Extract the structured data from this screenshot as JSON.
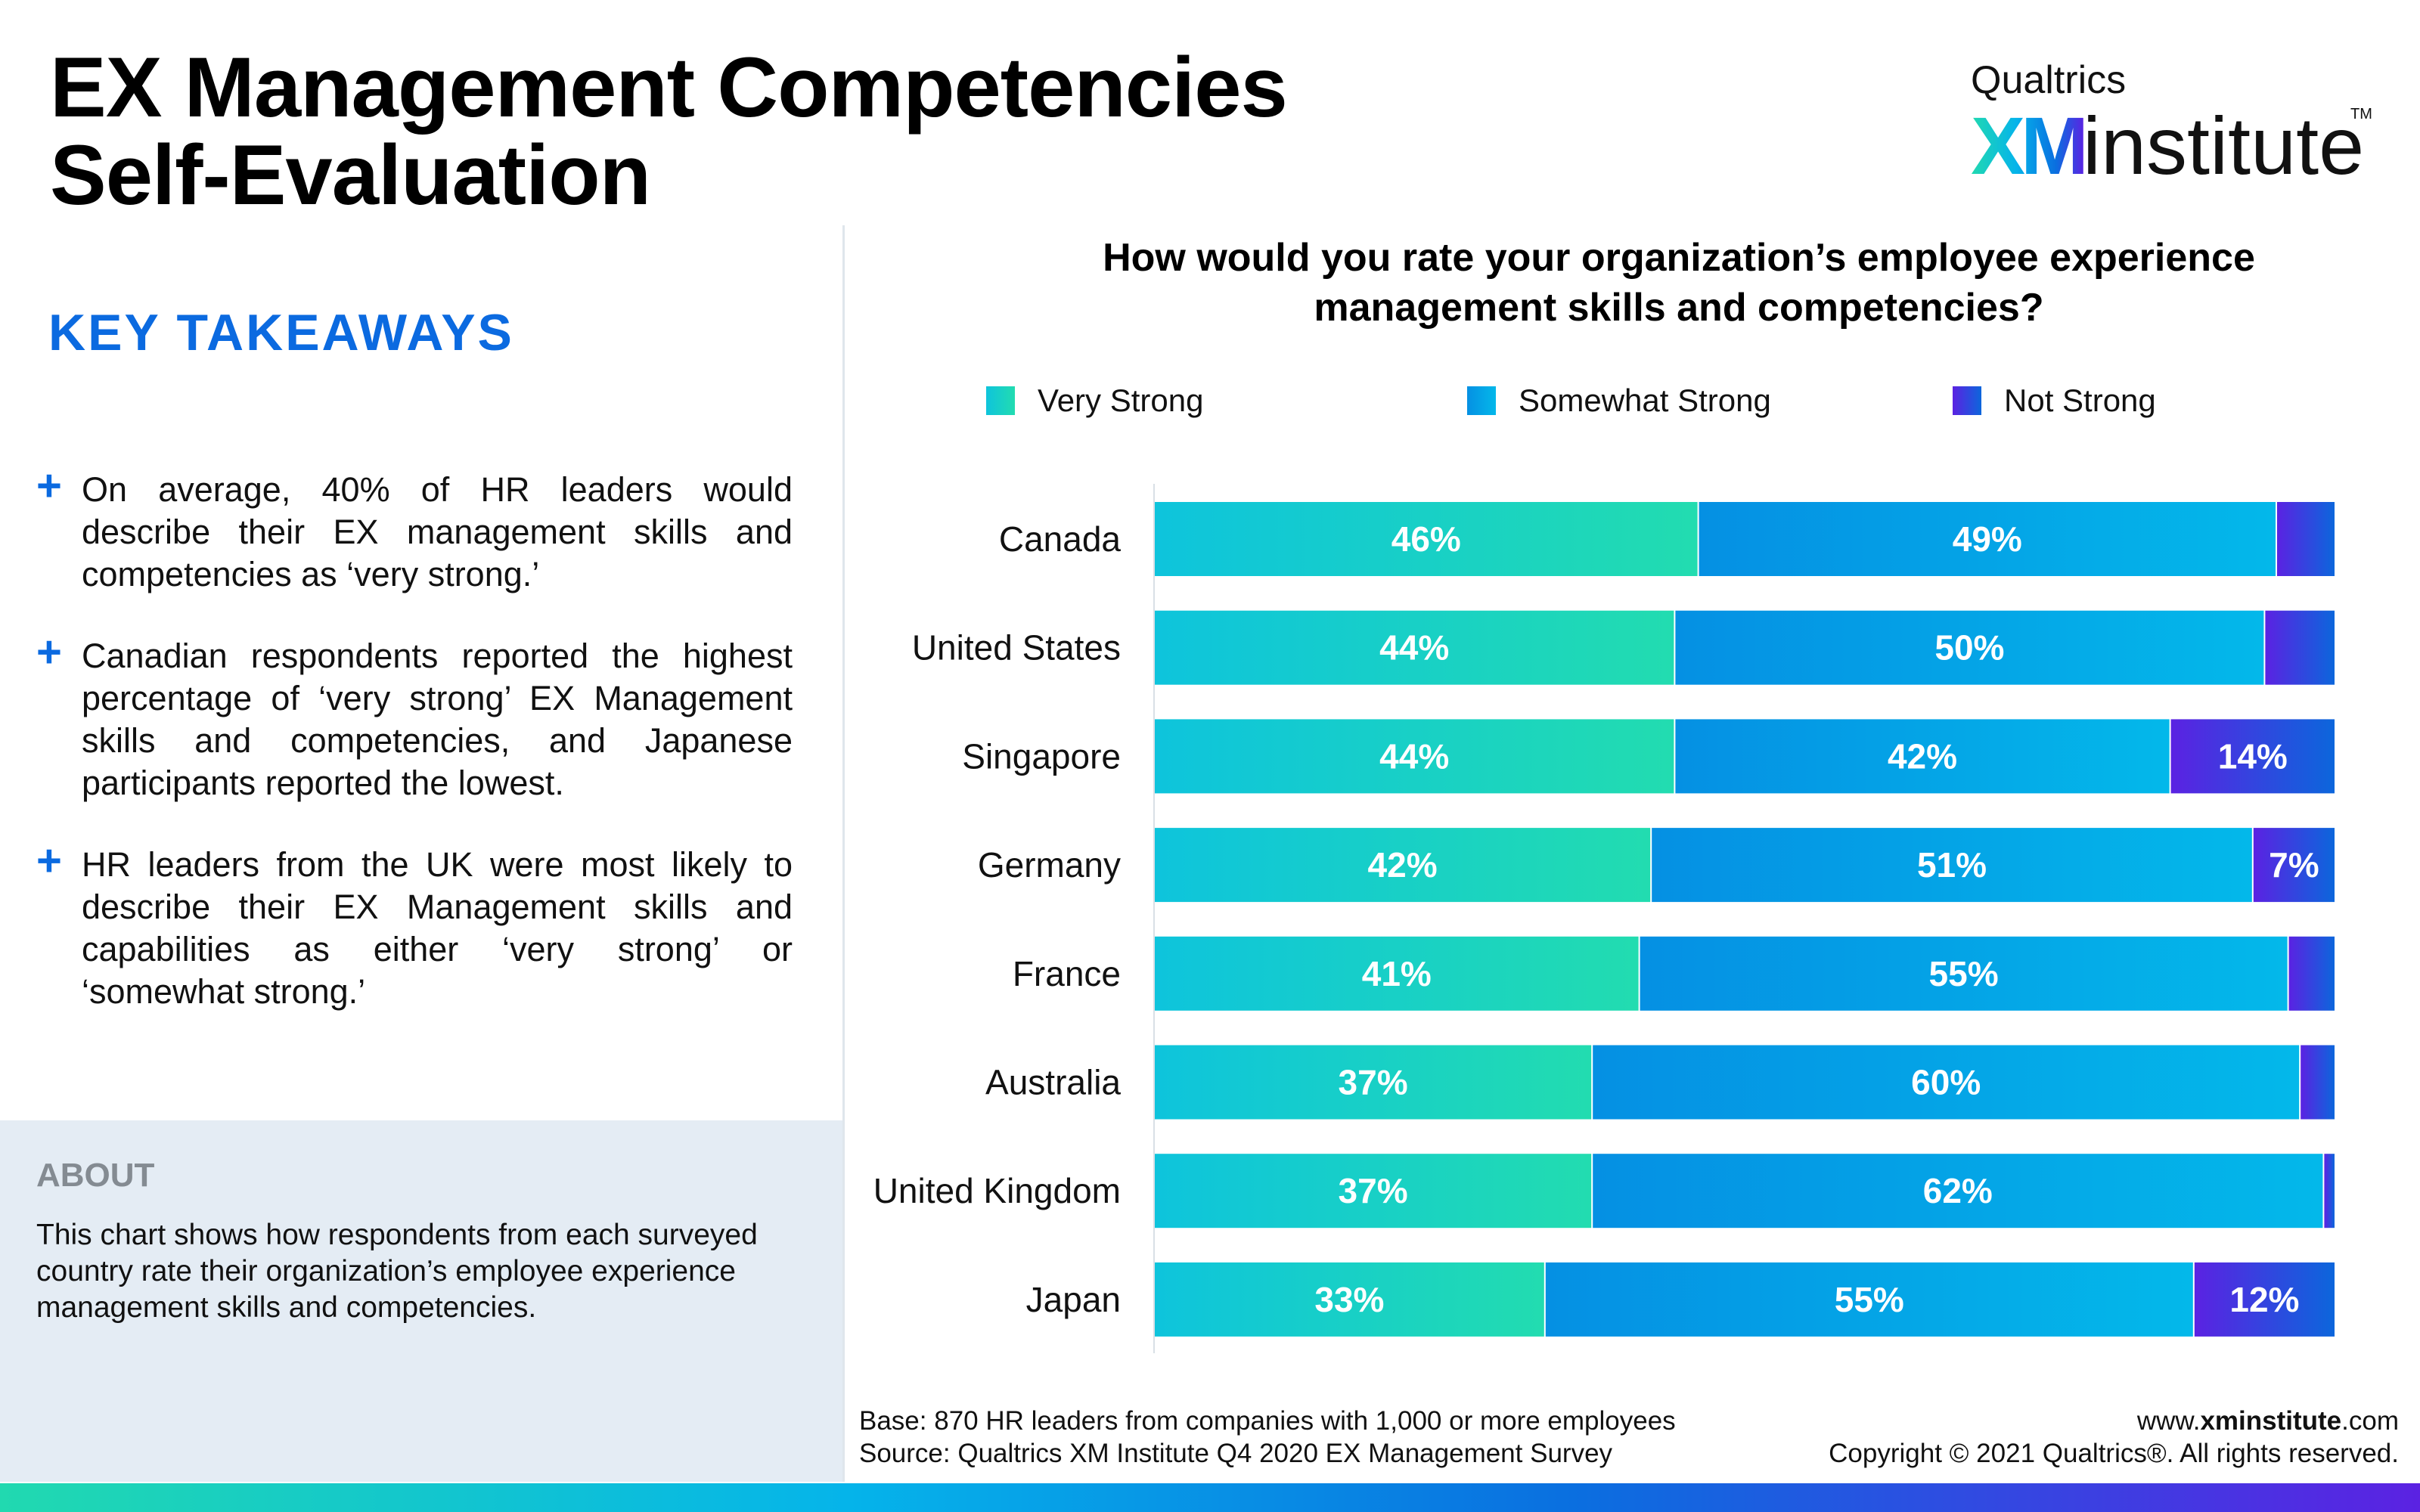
{
  "header": {
    "title_line1": "EX Management Competencies",
    "title_line2": "Self-Evaluation",
    "logo": {
      "top": "Qualtrics",
      "xm": "XM",
      "word": "institute",
      "tm": "TM"
    }
  },
  "takeaways": {
    "title": "KEY TAKEAWAYS",
    "bullet_icon": "+",
    "items": [
      "On average, 40% of HR leaders would describe their EX management skills and competencies as ‘very strong.’",
      "Canadian respondents reported the highest percentage of ‘very strong’ EX Management skills and competencies, and Japanese participants reported the lowest.",
      "HR leaders from the UK were most likely to describe their EX Management skills and capabilities as either ‘very strong’ or ‘somewhat strong.’"
    ]
  },
  "about": {
    "title": "ABOUT",
    "text": "This chart shows how respondents from each surveyed country rate their organization’s employee experience management skills and competencies."
  },
  "colors": {
    "accent_blue": "#0b6ae0",
    "very_strong": [
      "#0ec4dc",
      "#22dcb0"
    ],
    "somewhat_strong": [
      "#0590e3",
      "#03b8ea"
    ],
    "not_strong": [
      "#5b22e2",
      "#0c66dc"
    ]
  },
  "chart_data": {
    "type": "bar",
    "orientation": "horizontal",
    "stacked": true,
    "title": "How would you rate your organization’s employee experience management skills and competencies?",
    "xlabel": "",
    "ylabel": "",
    "xlim": [
      0,
      100
    ],
    "unit": "%",
    "legend_position": "top",
    "grid": false,
    "categories": [
      "Canada",
      "United States",
      "Singapore",
      "Germany",
      "France",
      "Australia",
      "United Kingdom",
      "Japan"
    ],
    "series": [
      {
        "name": "Very Strong",
        "values": [
          46,
          44,
          44,
          42,
          41,
          37,
          37,
          33
        ],
        "labels": [
          "46%",
          "44%",
          "44%",
          "42%",
          "41%",
          "37%",
          "37%",
          "33%"
        ]
      },
      {
        "name": "Somewhat Strong",
        "values": [
          49,
          50,
          42,
          51,
          55,
          60,
          62,
          55
        ],
        "labels": [
          "49%",
          "50%",
          "42%",
          "51%",
          "55%",
          "60%",
          "62%",
          "55%"
        ]
      },
      {
        "name": "Not Strong",
        "values": [
          5,
          6,
          14,
          7,
          4,
          3,
          1,
          12
        ],
        "labels": [
          "",
          "",
          "14%",
          "7%",
          "",
          "",
          "",
          "12%"
        ]
      }
    ]
  },
  "footer": {
    "base": "Base: 870 HR leaders from companies with 1,000 or more employees",
    "source": "Source: Qualtrics XM Institute Q4 2020  EX Management Survey",
    "url_prefix": "www.",
    "url_bold": "xminstitute",
    "url_suffix": ".com",
    "copyright": "Copyright © 2021 Qualtrics®. All rights reserved."
  }
}
